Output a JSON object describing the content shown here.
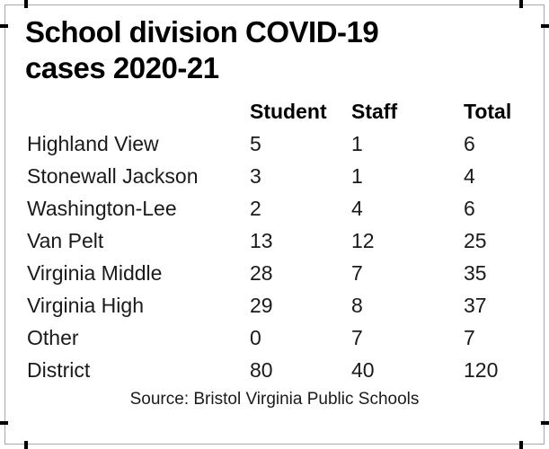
{
  "frame": {
    "background": "#ffffff",
    "border_color": "#a8a8a8",
    "crop_mark_color": "#000000"
  },
  "title": {
    "line1": "School division COVID-19",
    "line2": "cases 2020-21"
  },
  "chart_data": {
    "type": "table",
    "title": "School division COVID-19 cases 2020-21",
    "columns": [
      "Student",
      "Staff",
      "Total"
    ],
    "rows": [
      {
        "label": "Highland View",
        "student": 5,
        "staff": 1,
        "total": 6
      },
      {
        "label": "Stonewall Jackson",
        "student": 3,
        "staff": 1,
        "total": 4
      },
      {
        "label": "Washington-Lee",
        "student": 2,
        "staff": 4,
        "total": 6
      },
      {
        "label": "Van Pelt",
        "student": 13,
        "staff": 12,
        "total": 25
      },
      {
        "label": "Virginia Middle",
        "student": 28,
        "staff": 7,
        "total": 35
      },
      {
        "label": "Virginia High",
        "student": 29,
        "staff": 8,
        "total": 37
      },
      {
        "label": "Other",
        "student": 0,
        "staff": 7,
        "total": 7
      },
      {
        "label": "District",
        "student": 80,
        "staff": 40,
        "total": 120
      }
    ],
    "source": "Source: Bristol Virginia Public Schools"
  }
}
